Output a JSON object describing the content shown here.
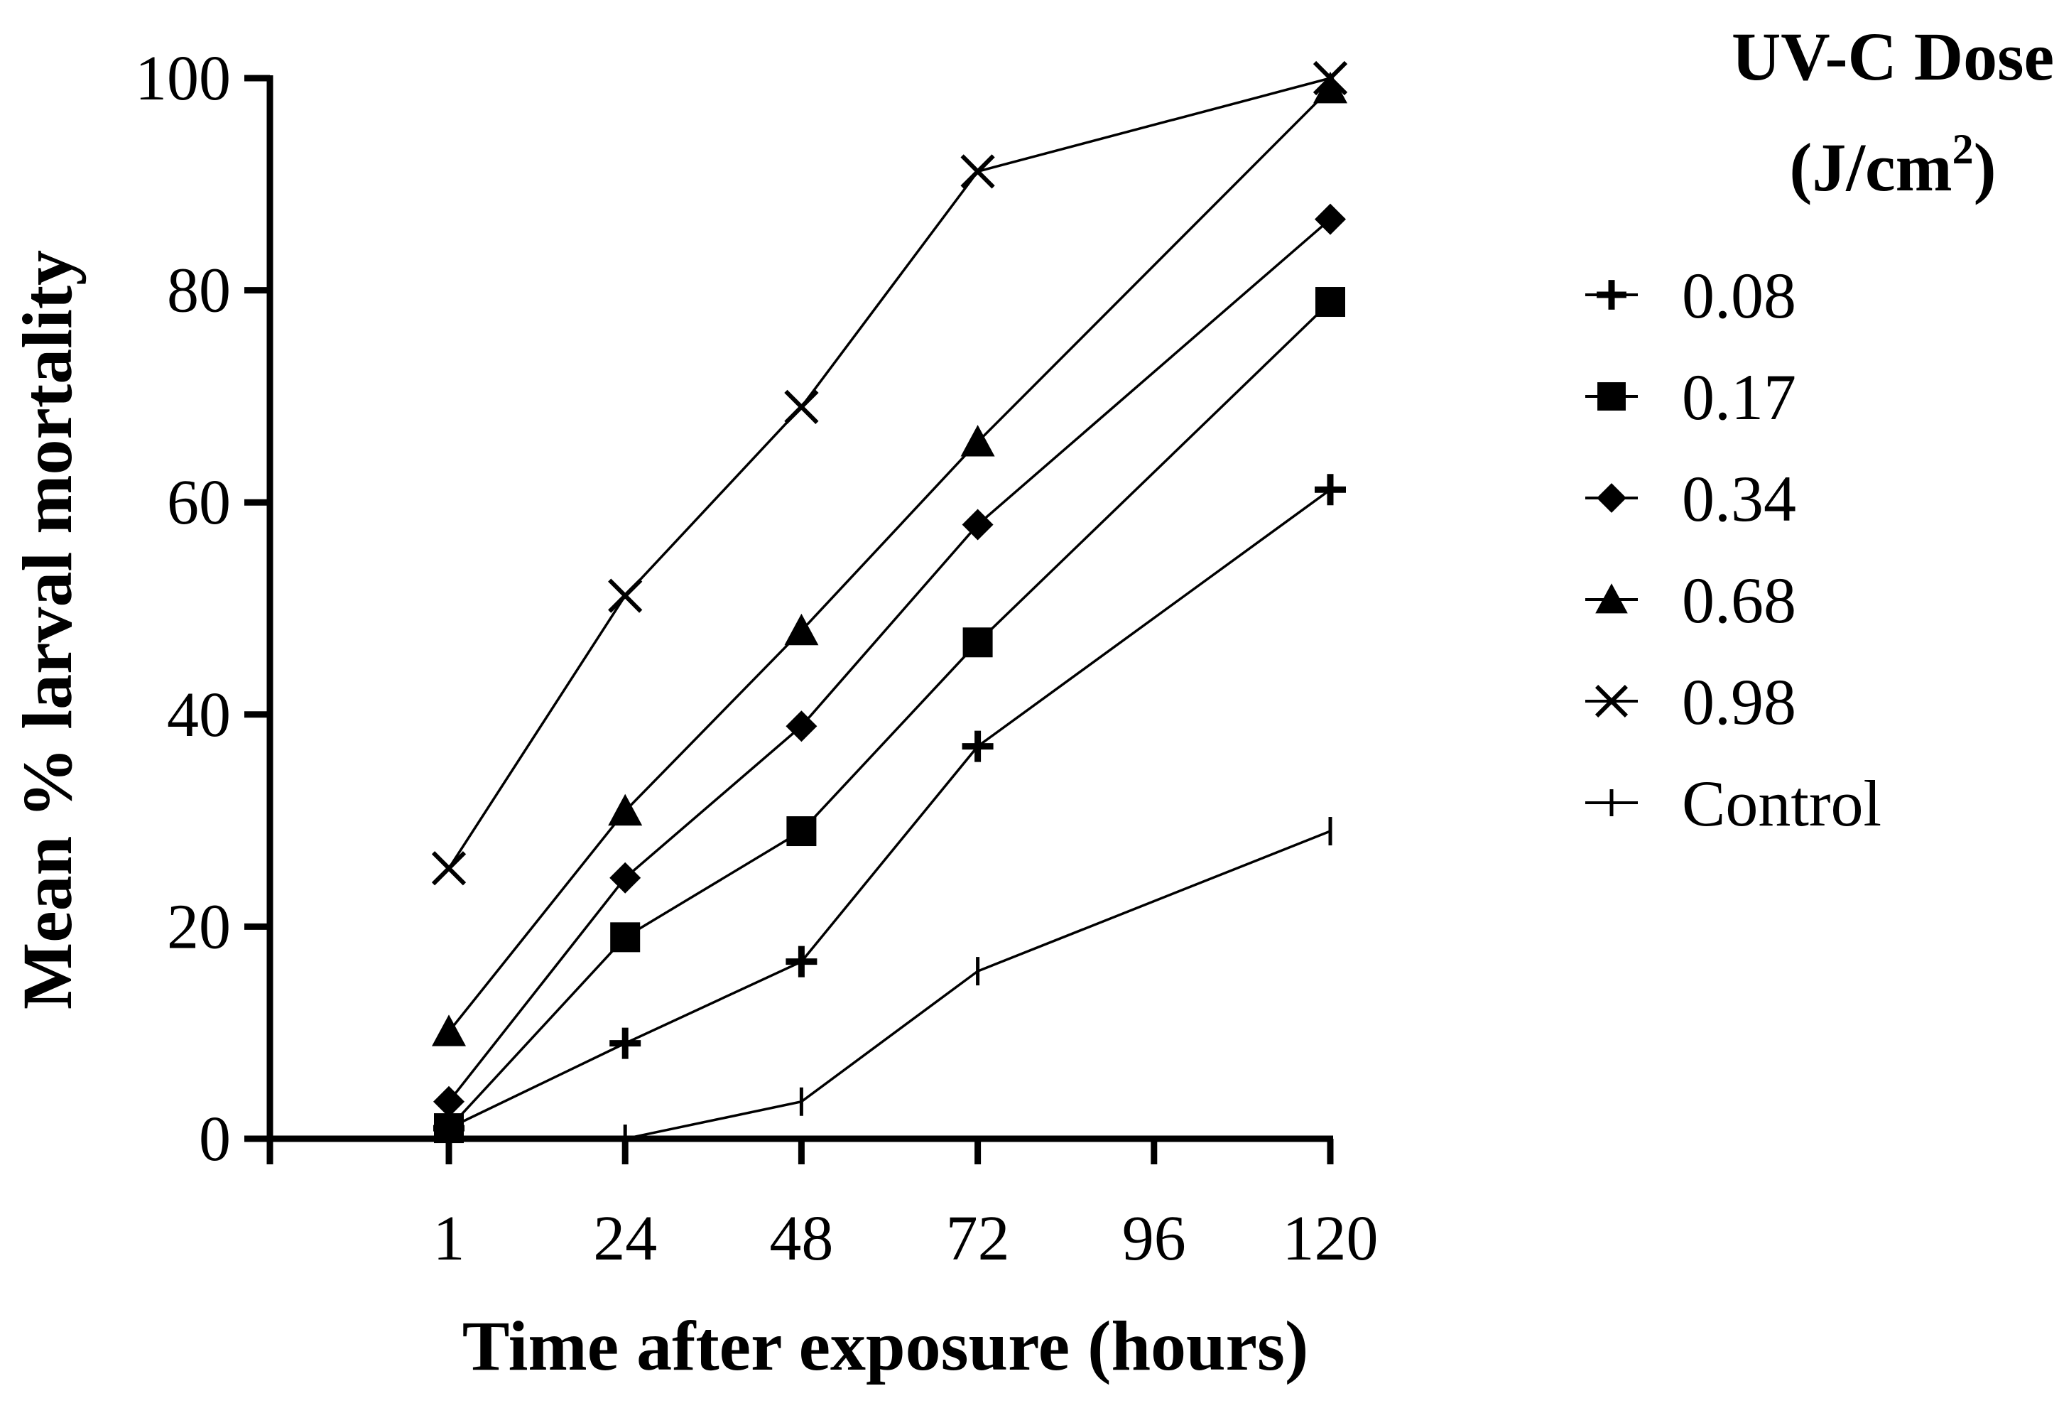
{
  "chart_data": {
    "type": "line",
    "xlabel": "Time after exposure (hours)",
    "ylabel": "Mean % larval mortality",
    "x": [
      1,
      24,
      48,
      72,
      120
    ],
    "x_ticks": [
      "1",
      "24",
      "48",
      "72",
      "96",
      "120"
    ],
    "y_ticks": [
      "0",
      "20",
      "40",
      "60",
      "80",
      "100"
    ],
    "ylim": [
      0,
      100
    ],
    "grid": false,
    "legend_placement": "right",
    "legend_title_line1": "UV-C Dose",
    "legend_title_line2": "(J/cm",
    "legend_title_sup": "2",
    "legend_title_close": ")",
    "series": [
      {
        "name": "0.08",
        "marker": "plus-bold",
        "values": [
          1,
          9,
          16.7,
          37,
          61.2
        ]
      },
      {
        "name": "0.17",
        "marker": "square",
        "values": [
          1,
          19,
          29,
          46.8,
          78.9
        ]
      },
      {
        "name": "0.34",
        "marker": "diamond",
        "values": [
          3.5,
          24.6,
          38.9,
          57.9,
          86.7
        ]
      },
      {
        "name": "0.68",
        "marker": "triangle",
        "values": [
          10.1,
          30.9,
          47.9,
          65.7,
          99
        ]
      },
      {
        "name": "0.98",
        "marker": "x",
        "values": [
          25.5,
          51.2,
          69,
          91.2,
          100
        ]
      },
      {
        "name": "Control",
        "marker": "vline",
        "values": [
          null,
          0,
          3.5,
          15.8,
          29
        ]
      }
    ],
    "colors": {
      "line": "#000000",
      "background": "#ffffff"
    }
  }
}
